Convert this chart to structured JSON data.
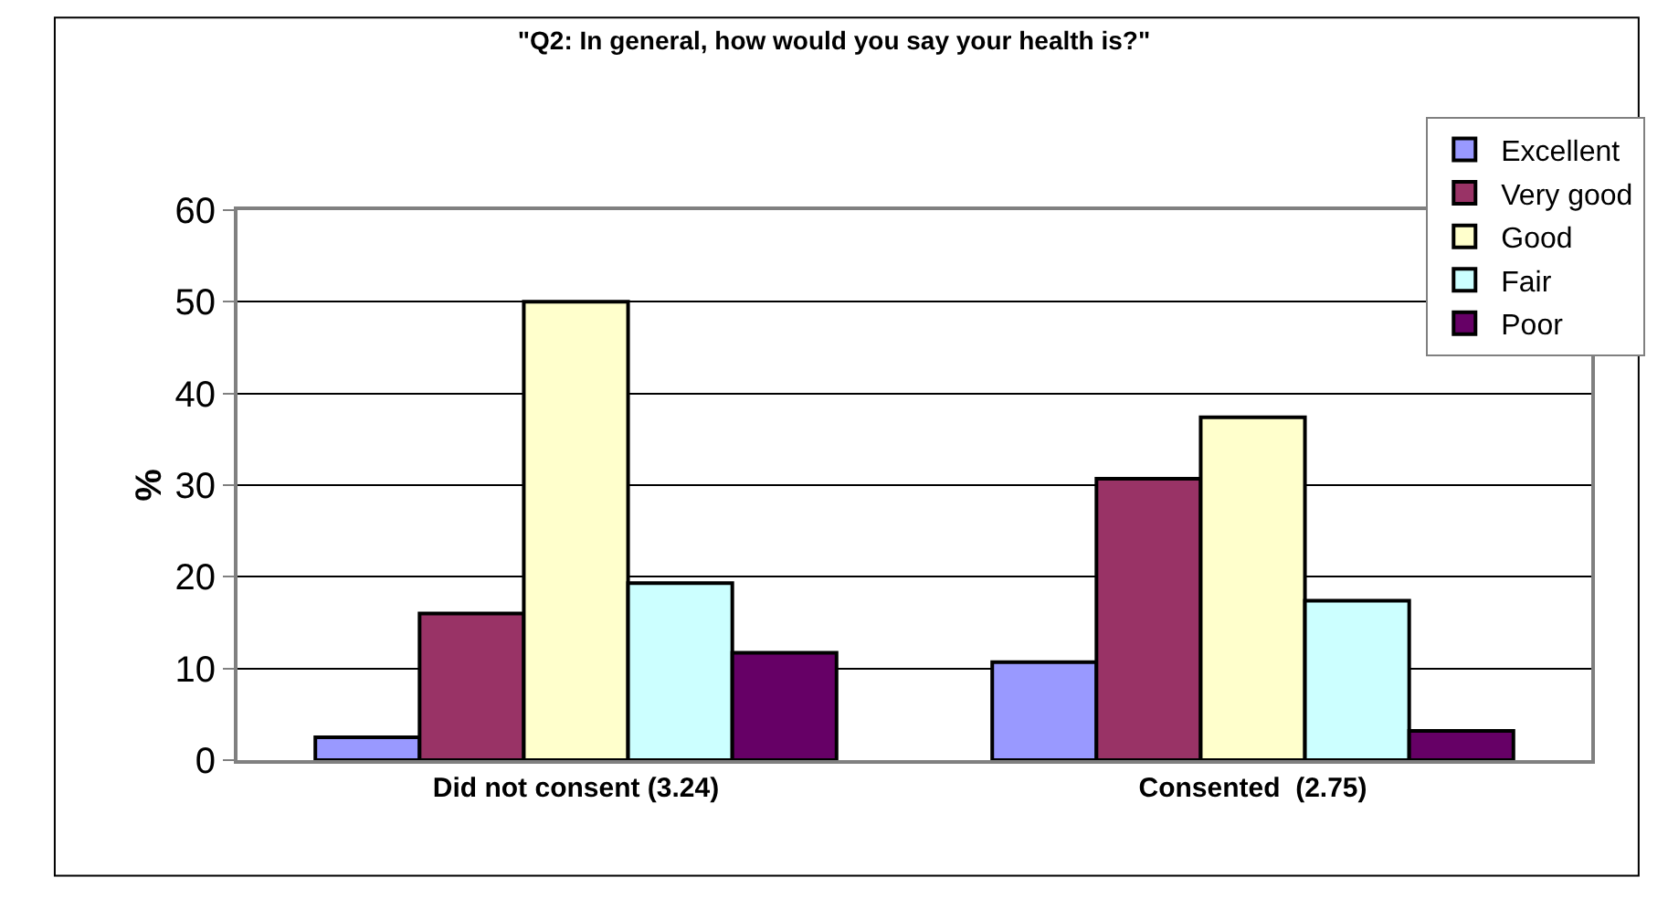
{
  "chart_data": {
    "type": "bar",
    "title": "\"Q2: In general, how would you say your health is?\"",
    "ylabel": "%",
    "categories": [
      "Did not consent (3.24)",
      "Consented  (2.75)"
    ],
    "series": [
      {
        "name": "Excellent",
        "color": "#9999ff",
        "values": [
          2.5,
          10.7
        ]
      },
      {
        "name": "Very good",
        "color": "#993366",
        "values": [
          16.0,
          30.7
        ]
      },
      {
        "name": "Good",
        "color": "#ffffcc",
        "values": [
          50.0,
          37.4
        ]
      },
      {
        "name": "Fair",
        "color": "#ccffff",
        "values": [
          19.3,
          17.4
        ]
      },
      {
        "name": "Poor",
        "color": "#660066",
        "values": [
          11.7,
          3.2
        ]
      }
    ],
    "ylim": [
      0,
      60
    ],
    "yticks": [
      0,
      10,
      20,
      30,
      40,
      50,
      60
    ],
    "grid": "y",
    "legend": "top right"
  }
}
